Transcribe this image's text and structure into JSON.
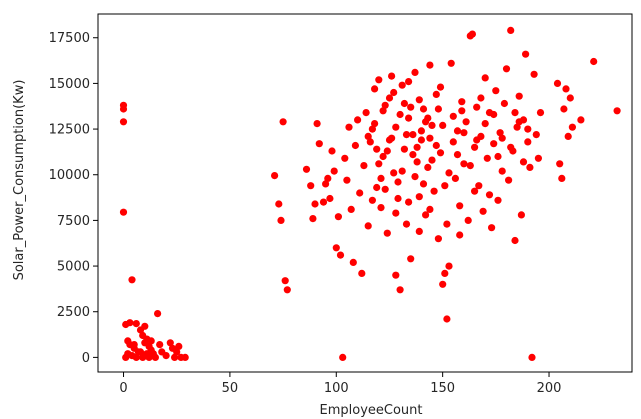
{
  "chart_data": {
    "type": "scatter",
    "title": "",
    "xlabel": "EmployeeCount",
    "ylabel": "Solar_Power_Consumption(Kw)",
    "xlim": [
      -12,
      239
    ],
    "ylim": [
      -800,
      18800
    ],
    "x_ticks": [
      0,
      50,
      100,
      150,
      200
    ],
    "y_ticks": [
      0,
      2500,
      5000,
      7500,
      10000,
      12500,
      15000,
      17500
    ],
    "x_tick_labels": [
      "0",
      "50",
      "100",
      "150",
      "200"
    ],
    "y_tick_labels": [
      "0",
      "2500",
      "5000",
      "7500",
      "10000",
      "12500",
      "15000",
      "17500"
    ],
    "grid": false,
    "marker_color": "#ff0000",
    "series": [
      {
        "points": [
          [
            0,
            13800
          ],
          [
            0,
            13600
          ],
          [
            0,
            12900
          ],
          [
            0,
            7950
          ],
          [
            1,
            1800
          ],
          [
            3,
            1900
          ],
          [
            4,
            4250
          ],
          [
            6,
            1850
          ],
          [
            2,
            900
          ],
          [
            3,
            700
          ],
          [
            5,
            500
          ],
          [
            7,
            300
          ],
          [
            8,
            1500
          ],
          [
            9,
            1200
          ],
          [
            10,
            800
          ],
          [
            11,
            1000
          ],
          [
            12,
            600
          ],
          [
            13,
            400
          ],
          [
            14,
            200
          ],
          [
            15,
            0
          ],
          [
            16,
            2400
          ],
          [
            17,
            700
          ],
          [
            18,
            300
          ],
          [
            20,
            100
          ],
          [
            22,
            800
          ],
          [
            23,
            500
          ],
          [
            24,
            0
          ],
          [
            25,
            300
          ],
          [
            26,
            600
          ],
          [
            27,
            0
          ],
          [
            29,
            0
          ],
          [
            1,
            0
          ],
          [
            2,
            200
          ],
          [
            4,
            100
          ],
          [
            5,
            700
          ],
          [
            6,
            0
          ],
          [
            8,
            300
          ],
          [
            9,
            0
          ],
          [
            11,
            200
          ],
          [
            12,
            0
          ],
          [
            13,
            900
          ],
          [
            10,
            1700
          ],
          [
            71,
            9950
          ],
          [
            73,
            8400
          ],
          [
            74,
            7500
          ],
          [
            75,
            12900
          ],
          [
            76,
            4200
          ],
          [
            77,
            3700
          ],
          [
            86,
            10300
          ],
          [
            88,
            9400
          ],
          [
            89,
            7600
          ],
          [
            90,
            8400
          ],
          [
            91,
            12800
          ],
          [
            92,
            11700
          ],
          [
            94,
            8500
          ],
          [
            95,
            9500
          ],
          [
            96,
            9800
          ],
          [
            97,
            8700
          ],
          [
            98,
            11300
          ],
          [
            99,
            10200
          ],
          [
            100,
            6000
          ],
          [
            101,
            7700
          ],
          [
            102,
            5600
          ],
          [
            103,
            0
          ],
          [
            104,
            10900
          ],
          [
            105,
            9700
          ],
          [
            106,
            12600
          ],
          [
            107,
            8100
          ],
          [
            108,
            5200
          ],
          [
            109,
            11600
          ],
          [
            110,
            13000
          ],
          [
            111,
            9000
          ],
          [
            112,
            4600
          ],
          [
            113,
            10500
          ],
          [
            114,
            13400
          ],
          [
            115,
            7200
          ],
          [
            116,
            11800
          ],
          [
            117,
            12500
          ],
          [
            118,
            14700
          ],
          [
            119,
            9300
          ],
          [
            120,
            15200
          ],
          [
            121,
            8200
          ],
          [
            122,
            11000
          ],
          [
            123,
            13800
          ],
          [
            124,
            6800
          ],
          [
            125,
            14200
          ],
          [
            126,
            12000
          ],
          [
            127,
            10100
          ],
          [
            128,
            4500
          ],
          [
            129,
            9600
          ],
          [
            130,
            3700
          ],
          [
            131,
            14900
          ],
          [
            132,
            11400
          ],
          [
            133,
            7300
          ],
          [
            134,
            13100
          ],
          [
            135,
            5400
          ],
          [
            136,
            12200
          ],
          [
            137,
            15600
          ],
          [
            138,
            10700
          ],
          [
            139,
            8800
          ],
          [
            140,
            11900
          ],
          [
            141,
            13600
          ],
          [
            142,
            7800
          ],
          [
            143,
            10400
          ],
          [
            144,
            16000
          ],
          [
            145,
            12700
          ],
          [
            146,
            9100
          ],
          [
            147,
            14400
          ],
          [
            148,
            6500
          ],
          [
            149,
            11200
          ],
          [
            150,
            4000
          ],
          [
            151,
            4600
          ],
          [
            152,
            2100
          ],
          [
            153,
            5000
          ],
          [
            154,
            16100
          ],
          [
            155,
            13200
          ],
          [
            156,
            9800
          ],
          [
            157,
            12400
          ],
          [
            158,
            8300
          ],
          [
            159,
            14000
          ],
          [
            160,
            10600
          ],
          [
            161,
            12900
          ],
          [
            162,
            7500
          ],
          [
            163,
            17600
          ],
          [
            164,
            17700
          ],
          [
            165,
            11500
          ],
          [
            166,
            13700
          ],
          [
            167,
            9400
          ],
          [
            168,
            12100
          ],
          [
            169,
            8000
          ],
          [
            170,
            15300
          ],
          [
            171,
            10900
          ],
          [
            172,
            13400
          ],
          [
            173,
            7100
          ],
          [
            174,
            11700
          ],
          [
            175,
            14600
          ],
          [
            176,
            8600
          ],
          [
            177,
            12300
          ],
          [
            178,
            10200
          ],
          [
            179,
            13900
          ],
          [
            180,
            15800
          ],
          [
            181,
            9700
          ],
          [
            182,
            17900
          ],
          [
            183,
            11300
          ],
          [
            184,
            6400
          ],
          [
            185,
            12600
          ],
          [
            186,
            14300
          ],
          [
            187,
            7800
          ],
          [
            188,
            13000
          ],
          [
            189,
            16600
          ],
          [
            190,
            11800
          ],
          [
            191,
            10400
          ],
          [
            192,
            0
          ],
          [
            193,
            15500
          ],
          [
            194,
            12200
          ],
          [
            195,
            10900
          ],
          [
            196,
            13400
          ],
          [
            204,
            15000
          ],
          [
            205,
            10600
          ],
          [
            206,
            9800
          ],
          [
            207,
            13600
          ],
          [
            208,
            14700
          ],
          [
            209,
            12100
          ],
          [
            210,
            14200
          ],
          [
            211,
            12600
          ],
          [
            215,
            13000
          ],
          [
            221,
            16200
          ],
          [
            232,
            13500
          ],
          [
            118,
            12800
          ],
          [
            122,
            13500
          ],
          [
            125,
            11900
          ],
          [
            128,
            12600
          ],
          [
            130,
            13300
          ],
          [
            133,
            12200
          ],
          [
            135,
            13700
          ],
          [
            138,
            11500
          ],
          [
            140,
            12400
          ],
          [
            143,
            13100
          ],
          [
            120,
            10600
          ],
          [
            124,
            11300
          ],
          [
            127,
            14500
          ],
          [
            131,
            10200
          ],
          [
            134,
            15100
          ],
          [
            137,
            9900
          ],
          [
            139,
            14100
          ],
          [
            142,
            12900
          ],
          [
            145,
            10800
          ],
          [
            148,
            13600
          ],
          [
            115,
            12100
          ],
          [
            119,
            11400
          ],
          [
            123,
            9200
          ],
          [
            126,
            15400
          ],
          [
            129,
            8700
          ],
          [
            132,
            13900
          ],
          [
            136,
            11100
          ],
          [
            141,
            9500
          ],
          [
            144,
            12000
          ],
          [
            147,
            11600
          ],
          [
            150,
            12700
          ],
          [
            153,
            10100
          ],
          [
            157,
            11100
          ],
          [
            160,
            12300
          ],
          [
            163,
            10500
          ],
          [
            166,
            11900
          ],
          [
            170,
            12800
          ],
          [
            174,
            13300
          ],
          [
            178,
            12000
          ],
          [
            182,
            11500
          ],
          [
            186,
            12900
          ],
          [
            188,
            10700
          ],
          [
            190,
            12500
          ],
          [
            184,
            13400
          ],
          [
            176,
            11000
          ],
          [
            168,
            14200
          ],
          [
            159,
            13500
          ],
          [
            155,
            11800
          ],
          [
            151,
            9400
          ],
          [
            149,
            14800
          ],
          [
            117,
            8600
          ],
          [
            121,
            9800
          ],
          [
            128,
            7900
          ],
          [
            134,
            8500
          ],
          [
            139,
            6900
          ],
          [
            144,
            8100
          ],
          [
            152,
            7300
          ],
          [
            158,
            6700
          ],
          [
            165,
            9100
          ],
          [
            172,
            8900
          ]
        ]
      }
    ]
  }
}
